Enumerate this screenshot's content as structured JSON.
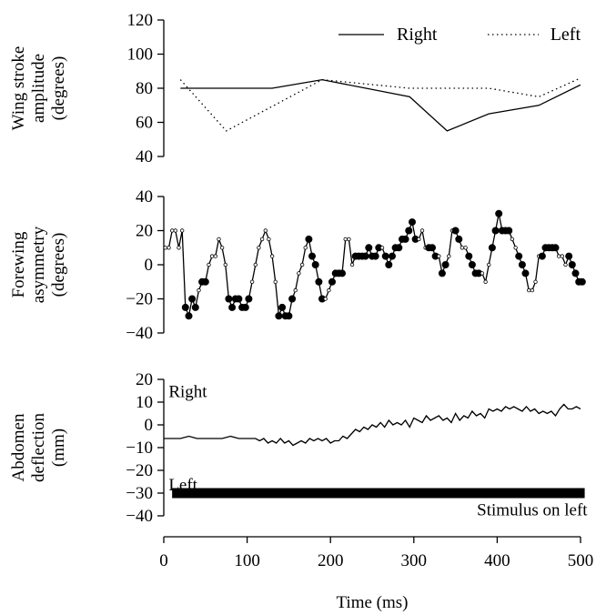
{
  "chart_data": [
    {
      "type": "line",
      "ylabel_lines": [
        "Wing stroke",
        "amplitude",
        "(degrees)"
      ],
      "ylim": [
        40,
        120
      ],
      "yticks": [
        40,
        60,
        80,
        100,
        120
      ],
      "legend_position": "top-right",
      "series": [
        {
          "name": "Right",
          "style": "solid",
          "x": [
            20,
            130,
            190,
            295,
            340,
            390,
            450,
            500
          ],
          "y": [
            80,
            80,
            85,
            75,
            55,
            65,
            70,
            82
          ]
        },
        {
          "name": "Left",
          "style": "dotted",
          "x": [
            20,
            75,
            190,
            295,
            390,
            450,
            500
          ],
          "y": [
            85,
            55,
            85,
            80,
            80,
            75,
            86
          ]
        }
      ]
    },
    {
      "type": "line",
      "ylabel_lines": [
        "Forewing",
        "asymmetry",
        "(degrees)"
      ],
      "ylim": [
        -40,
        40
      ],
      "yticks": [
        -40,
        -20,
        0,
        20,
        40
      ],
      "series": [
        {
          "x": [
            2,
            6,
            10,
            14,
            18,
            22,
            26,
            30,
            34,
            38,
            42,
            46,
            50,
            54,
            58,
            62,
            66,
            70,
            74,
            78,
            82,
            86,
            90,
            94,
            98,
            102,
            106,
            110,
            114,
            118,
            122,
            126,
            130,
            134,
            138,
            142,
            146,
            150,
            154,
            158,
            162,
            166,
            170,
            174,
            178,
            182,
            186,
            190,
            194,
            198,
            202,
            206,
            210,
            214,
            218,
            222,
            226,
            230,
            234,
            238,
            242,
            246,
            250,
            254,
            258,
            262,
            266,
            270,
            274,
            278,
            282,
            286,
            290,
            294,
            298,
            302,
            306,
            310,
            314,
            318,
            322,
            326,
            330,
            334,
            338,
            342,
            346,
            350,
            354,
            358,
            362,
            366,
            370,
            374,
            378,
            382,
            386,
            390,
            394,
            398,
            402,
            406,
            410,
            414,
            418,
            422,
            426,
            430,
            434,
            438,
            442,
            446,
            450,
            454,
            458,
            462,
            466,
            470,
            474,
            478,
            482,
            486,
            490,
            494,
            498,
            502
          ],
          "y": [
            10,
            10,
            20,
            20,
            10,
            20,
            -25,
            -30,
            -20,
            -25,
            -15,
            -10,
            -10,
            0,
            5,
            5,
            15,
            10,
            0,
            -20,
            -25,
            -20,
            -20,
            -25,
            -25,
            -20,
            -10,
            0,
            10,
            15,
            20,
            15,
            5,
            -10,
            -30,
            -25,
            -30,
            -30,
            -20,
            -15,
            -5,
            0,
            10,
            15,
            5,
            0,
            -10,
            -20,
            -20,
            -15,
            -10,
            -5,
            -5,
            -5,
            15,
            15,
            0,
            5,
            5,
            5,
            5,
            10,
            5,
            5,
            10,
            10,
            5,
            0,
            5,
            10,
            10,
            15,
            15,
            20,
            25,
            15,
            15,
            20,
            10,
            10,
            10,
            5,
            5,
            -5,
            0,
            5,
            20,
            20,
            15,
            10,
            10,
            5,
            0,
            -5,
            -5,
            -5,
            -10,
            0,
            10,
            20,
            30,
            20,
            20,
            20,
            15,
            10,
            5,
            0,
            -5,
            -15,
            -15,
            -10,
            5,
            5,
            10,
            10,
            10,
            10,
            5,
            5,
            0,
            5,
            0,
            -5,
            -10,
            -10
          ],
          "filled_marker_index_ranges": [
            [
              6,
              9
            ],
            [
              11,
              12
            ],
            [
              19,
              25
            ],
            [
              34,
              38
            ],
            [
              43,
              47
            ],
            [
              50,
              53
            ],
            [
              57,
              64
            ],
            [
              66,
              75
            ],
            [
              79,
              81
            ],
            [
              83,
              84
            ],
            [
              87,
              88
            ],
            [
              91,
              94
            ],
            [
              98,
              103
            ],
            [
              106,
              108
            ],
            [
              113,
              117
            ],
            [
              121,
              123
            ],
            [
              124,
              125
            ]
          ]
        }
      ]
    },
    {
      "type": "line",
      "ylabel_lines": [
        "Abdomen",
        "deflection",
        "(mm)"
      ],
      "ylim": [
        -40,
        20
      ],
      "yticks": [
        -40,
        -30,
        -20,
        -10,
        0,
        10,
        20
      ],
      "annotations": [
        {
          "text": "Right",
          "x": 8,
          "y": 15
        },
        {
          "text": "Left",
          "x": 8,
          "y": -26
        },
        {
          "text": "Stimulus on left",
          "x": 505,
          "y": -37
        }
      ],
      "stimulus_bar": {
        "label": "Stimulus on left",
        "x_start": 10,
        "x_end": 505,
        "y": -30
      },
      "series": [
        {
          "x": [
            0,
            20,
            30,
            40,
            55,
            70,
            80,
            90,
            100,
            110,
            115,
            120,
            125,
            130,
            135,
            140,
            145,
            150,
            155,
            160,
            165,
            170,
            175,
            180,
            185,
            190,
            195,
            200,
            205,
            210,
            215,
            220,
            225,
            230,
            235,
            240,
            245,
            250,
            255,
            260,
            265,
            270,
            275,
            280,
            285,
            290,
            295,
            300,
            305,
            310,
            315,
            320,
            325,
            330,
            335,
            340,
            345,
            350,
            355,
            360,
            365,
            370,
            375,
            380,
            385,
            390,
            395,
            400,
            405,
            410,
            415,
            420,
            425,
            430,
            435,
            440,
            445,
            450,
            455,
            460,
            465,
            470,
            475,
            480,
            485,
            490,
            495,
            500
          ],
          "y": [
            -6,
            -6,
            -5,
            -6,
            -6,
            -6,
            -5,
            -6,
            -6,
            -6,
            -7,
            -6,
            -8,
            -7,
            -8,
            -6,
            -8,
            -7,
            -9,
            -8,
            -7,
            -8,
            -6,
            -7,
            -6,
            -7,
            -6,
            -8,
            -7,
            -7,
            -5,
            -6,
            -4,
            -2,
            -3,
            -1,
            -2,
            0,
            -1,
            1,
            -1,
            2,
            0,
            1,
            0,
            2,
            -1,
            3,
            2,
            1,
            4,
            2,
            3,
            4,
            2,
            3,
            1,
            5,
            2,
            4,
            3,
            6,
            4,
            5,
            3,
            7,
            6,
            7,
            6,
            8,
            7,
            8,
            7,
            6,
            8,
            6,
            7,
            5,
            6,
            5,
            6,
            4,
            7,
            9,
            7,
            7,
            8,
            7
          ]
        }
      ]
    }
  ],
  "xaxis": {
    "label": "Time (ms)",
    "xlim": [
      0,
      500
    ],
    "ticks": [
      0,
      100,
      200,
      300,
      400,
      500
    ]
  }
}
